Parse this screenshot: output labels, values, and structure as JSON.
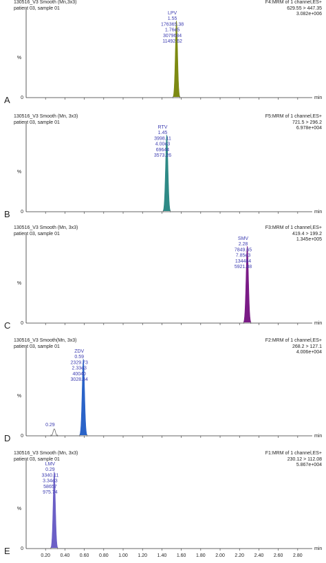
{
  "chart_data": [
    {
      "type": "line",
      "panel": "A",
      "header_left": [
        "130516_V3 Smooth (Mn,3x3)",
        "patient 03, sample 01"
      ],
      "header_right": [
        "F4:MRM of 1 channel,ES+",
        "629.55 > 447.35",
        "3.082e+006"
      ],
      "ylabel": "%",
      "xlabel": "min",
      "xlim": [
        0.0,
        2.95
      ],
      "peaks": [
        {
          "rt": 1.55,
          "height": 100,
          "width": 0.07,
          "color": "#7d8a12",
          "filled": true,
          "labels": [
            "LPV",
            "1.55",
            "176365.38",
            "1.76e5",
            "3079684",
            "11492.62"
          ]
        }
      ]
    },
    {
      "type": "line",
      "panel": "B",
      "header_left": [
        "130516_V3 Smooth (Mn, 3x3)",
        "patient 03, sample 01"
      ],
      "header_right": [
        "F5:MRM of 1 channel,ES+",
        "721.5 > 296.2",
        "6.978e+004"
      ],
      "ylabel": "%",
      "xlabel": "min",
      "xlim": [
        0.0,
        2.95
      ],
      "peaks": [
        {
          "rt": 1.45,
          "height": 100,
          "width": 0.075,
          "color": "#2e8a86",
          "filled": true,
          "labels": [
            "RTV",
            "1.45",
            "3998.11",
            "4.00e3",
            "69644",
            "3573.26"
          ]
        }
      ]
    },
    {
      "type": "line",
      "panel": "C",
      "header_left": [
        "130516_V3 Smooth (Mn, 3x3)",
        "patient 03, sample 01"
      ],
      "header_right": [
        "F3:MRM of 1 channel,ES+",
        "419.4 > 199.2",
        "1.345e+005"
      ],
      "ylabel": "%",
      "xlabel": "min",
      "xlim": [
        0.0,
        2.95
      ],
      "peaks": [
        {
          "rt": 2.28,
          "height": 100,
          "width": 0.075,
          "color": "#7a1b86",
          "filled": true,
          "labels": [
            "SMV",
            "2.28",
            "7849.65",
            "7.85e3",
            "134484",
            "5921.88"
          ]
        }
      ]
    },
    {
      "type": "line",
      "panel": "D",
      "header_left": [
        "130516_V3 Smooth(Mn, 3x3)",
        "patient 03, sample 01"
      ],
      "header_right": [
        "F2:MRM of 1 channel,ES+",
        "268.2 > 127.1",
        "4.006e+004"
      ],
      "ylabel": "%",
      "xlabel": "min",
      "xlim": [
        0.0,
        2.95
      ],
      "peaks": [
        {
          "rt": 0.29,
          "height": 9,
          "width": 0.07,
          "color": "#666666",
          "filled": false,
          "labels": [
            "0.29"
          ]
        },
        {
          "rt": 0.59,
          "height": 100,
          "width": 0.075,
          "color": "#2a63c8",
          "filled": true,
          "labels": [
            "ZDV",
            "0.59",
            "2329.73",
            "2.33e3",
            "40040",
            "3028.34"
          ]
        }
      ]
    },
    {
      "type": "line",
      "panel": "E",
      "header_left": [
        "130516_V3 Smooth (Mn, 3x3)",
        "patient 03, sample 01"
      ],
      "header_right": [
        "F1:MRM of 1 channel,ES+",
        "230.12 > 112.08",
        "5.867e+004"
      ],
      "ylabel": "%",
      "xlabel": "min",
      "xlim": [
        0.0,
        2.95
      ],
      "x_ticks": [
        "0.20",
        "0.40",
        "0.60",
        "0.80",
        "1.00",
        "1.20",
        "1.40",
        "1.60",
        "1.80",
        "2.00",
        "2.20",
        "2.40",
        "2.60",
        "2.80"
      ],
      "peaks": [
        {
          "rt": 0.29,
          "height": 100,
          "width": 0.07,
          "color": "#6b5fc6",
          "filled": true,
          "labels": [
            "LMV",
            "0.29",
            "3340.11",
            "3.34e3",
            "58657",
            "975.74"
          ]
        }
      ]
    }
  ]
}
